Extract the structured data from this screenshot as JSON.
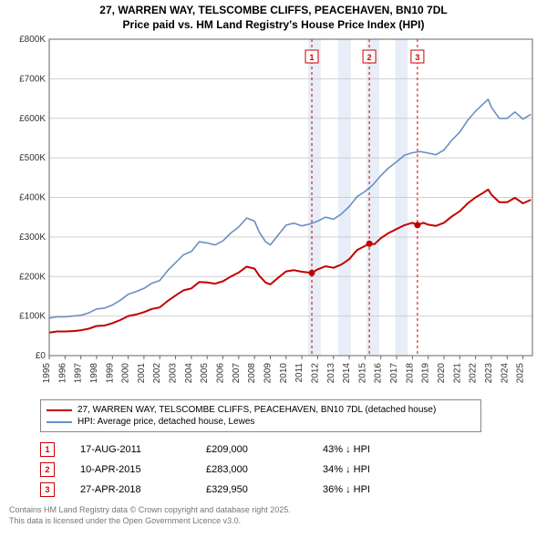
{
  "title_line1": "27, WARREN WAY, TELSCOMBE CLIFFS, PEACEHAVEN, BN10 7DL",
  "title_line2": "Price paid vs. HM Land Registry's House Price Index (HPI)",
  "chart": {
    "type": "line",
    "background_color": "#ffffff",
    "plot_border_color": "#666666",
    "grid_color": "#cfcfcf",
    "axis_label_color": "#333333",
    "axis_label_fontsize": 10,
    "y_axis": {
      "min": 0,
      "max": 800000,
      "tick_step": 100000,
      "tick_labels": [
        "£0",
        "£100K",
        "£200K",
        "£300K",
        "£400K",
        "£500K",
        "£600K",
        "£700K",
        "£800K"
      ]
    },
    "x_axis": {
      "years": [
        1995,
        1996,
        1997,
        1998,
        1999,
        2000,
        2001,
        2002,
        2003,
        2004,
        2005,
        2006,
        2007,
        2008,
        2009,
        2010,
        2011,
        2012,
        2013,
        2014,
        2015,
        2016,
        2017,
        2018,
        2019,
        2020,
        2021,
        2022,
        2023,
        2024,
        2025
      ]
    },
    "shaded_bands": [
      {
        "from": 2011.4,
        "to": 2012.2,
        "color": "#e7eef7"
      },
      {
        "from": 2013.3,
        "to": 2014.1,
        "color": "#e7eef7"
      },
      {
        "from": 2015.1,
        "to": 2015.9,
        "color": "#e7eef7"
      },
      {
        "from": 2016.9,
        "to": 2017.7,
        "color": "#e7eef7"
      }
    ],
    "sale_markers": [
      {
        "num": "1",
        "year": 2011.63,
        "dash_color": "#cc0000"
      },
      {
        "num": "2",
        "year": 2015.27,
        "dash_color": "#cc0000"
      },
      {
        "num": "3",
        "year": 2018.32,
        "dash_color": "#cc0000"
      }
    ],
    "series": [
      {
        "name": "hpi",
        "color": "#6a8fc5",
        "line_width": 1.6,
        "poly": true,
        "points": [
          [
            1995,
            95000
          ],
          [
            1995.5,
            98000
          ],
          [
            1996,
            98000
          ],
          [
            1996.5,
            100000
          ],
          [
            1997,
            102000
          ],
          [
            1997.5,
            108000
          ],
          [
            1998,
            118000
          ],
          [
            1998.5,
            120000
          ],
          [
            1999,
            128000
          ],
          [
            1999.5,
            140000
          ],
          [
            2000,
            155000
          ],
          [
            2000.5,
            162000
          ],
          [
            2001,
            170000
          ],
          [
            2001.5,
            183000
          ],
          [
            2002,
            190000
          ],
          [
            2002.5,
            215000
          ],
          [
            2003,
            235000
          ],
          [
            2003.5,
            255000
          ],
          [
            2004,
            263000
          ],
          [
            2004.5,
            288000
          ],
          [
            2005,
            285000
          ],
          [
            2005.5,
            280000
          ],
          [
            2006,
            290000
          ],
          [
            2006.5,
            310000
          ],
          [
            2007,
            325000
          ],
          [
            2007.5,
            348000
          ],
          [
            2008,
            340000
          ],
          [
            2008.3,
            312000
          ],
          [
            2008.7,
            288000
          ],
          [
            2009,
            280000
          ],
          [
            2009.5,
            305000
          ],
          [
            2010,
            330000
          ],
          [
            2010.5,
            335000
          ],
          [
            2011,
            328000
          ],
          [
            2011.5,
            333000
          ],
          [
            2012,
            340000
          ],
          [
            2012.5,
            350000
          ],
          [
            2013,
            345000
          ],
          [
            2013.5,
            358000
          ],
          [
            2014,
            377000
          ],
          [
            2014.5,
            402000
          ],
          [
            2015,
            415000
          ],
          [
            2015.5,
            432000
          ],
          [
            2016,
            455000
          ],
          [
            2016.5,
            475000
          ],
          [
            2017,
            490000
          ],
          [
            2017.5,
            507000
          ],
          [
            2018,
            513000
          ],
          [
            2018.5,
            516000
          ],
          [
            2019,
            512000
          ],
          [
            2019.5,
            508000
          ],
          [
            2020,
            520000
          ],
          [
            2020.5,
            545000
          ],
          [
            2021,
            565000
          ],
          [
            2021.5,
            595000
          ],
          [
            2022,
            618000
          ],
          [
            2022.5,
            637000
          ],
          [
            2022.8,
            648000
          ],
          [
            2023,
            628000
          ],
          [
            2023.5,
            600000
          ],
          [
            2024,
            600000
          ],
          [
            2024.5,
            616000
          ],
          [
            2025,
            598000
          ],
          [
            2025.5,
            610000
          ]
        ]
      },
      {
        "name": "property",
        "color": "#c20000",
        "line_width": 2,
        "poly": true,
        "points": [
          [
            1995,
            58000
          ],
          [
            1995.5,
            61000
          ],
          [
            1996,
            61000
          ],
          [
            1996.5,
            62000
          ],
          [
            1997,
            64000
          ],
          [
            1997.5,
            68000
          ],
          [
            1998,
            75000
          ],
          [
            1998.5,
            76000
          ],
          [
            1999,
            82000
          ],
          [
            1999.5,
            90000
          ],
          [
            2000,
            100000
          ],
          [
            2000.5,
            104000
          ],
          [
            2001,
            110000
          ],
          [
            2001.5,
            118000
          ],
          [
            2002,
            122000
          ],
          [
            2002.5,
            138000
          ],
          [
            2003,
            152000
          ],
          [
            2003.5,
            165000
          ],
          [
            2004,
            170000
          ],
          [
            2004.5,
            186000
          ],
          [
            2005,
            185000
          ],
          [
            2005.5,
            182000
          ],
          [
            2006,
            188000
          ],
          [
            2006.5,
            200000
          ],
          [
            2007,
            210000
          ],
          [
            2007.5,
            225000
          ],
          [
            2008,
            220000
          ],
          [
            2008.3,
            202000
          ],
          [
            2008.7,
            185000
          ],
          [
            2009,
            180000
          ],
          [
            2009.5,
            197000
          ],
          [
            2010,
            213000
          ],
          [
            2010.5,
            216000
          ],
          [
            2011,
            212000
          ],
          [
            2011.63,
            209000
          ],
          [
            2012,
            218000
          ],
          [
            2012.5,
            226000
          ],
          [
            2013,
            222000
          ],
          [
            2013.5,
            230000
          ],
          [
            2014,
            244000
          ],
          [
            2014.5,
            267000
          ],
          [
            2015.27,
            283000
          ],
          [
            2015.6,
            282000
          ],
          [
            2016,
            297000
          ],
          [
            2016.5,
            310000
          ],
          [
            2017,
            320000
          ],
          [
            2017.5,
            330000
          ],
          [
            2018,
            336000
          ],
          [
            2018.32,
            329950
          ],
          [
            2018.7,
            336000
          ],
          [
            2019,
            331000
          ],
          [
            2019.5,
            328000
          ],
          [
            2020,
            336000
          ],
          [
            2020.5,
            352000
          ],
          [
            2021,
            365000
          ],
          [
            2021.5,
            385000
          ],
          [
            2022,
            400000
          ],
          [
            2022.5,
            412000
          ],
          [
            2022.8,
            420000
          ],
          [
            2023,
            407000
          ],
          [
            2023.5,
            388000
          ],
          [
            2024,
            388000
          ],
          [
            2024.5,
            399000
          ],
          [
            2025,
            385000
          ],
          [
            2025.5,
            394000
          ]
        ]
      }
    ],
    "sale_dots": [
      {
        "year": 2011.63,
        "value": 209000,
        "color": "#c20000",
        "r": 3.5
      },
      {
        "year": 2015.27,
        "value": 283000,
        "color": "#c20000",
        "r": 3.5
      },
      {
        "year": 2018.32,
        "value": 329950,
        "color": "#c20000",
        "r": 3.5
      }
    ]
  },
  "legend": {
    "items": [
      {
        "color": "#c20000",
        "label": "27, WARREN WAY, TELSCOMBE CLIFFS, PEACEHAVEN, BN10 7DL (detached house)"
      },
      {
        "color": "#6a8fc5",
        "label": "HPI: Average price, detached house, Lewes"
      }
    ]
  },
  "sales": [
    {
      "num": "1",
      "date": "17-AUG-2011",
      "price": "£209,000",
      "diff": "43% ↓ HPI"
    },
    {
      "num": "2",
      "date": "10-APR-2015",
      "price": "£283,000",
      "diff": "34% ↓ HPI"
    },
    {
      "num": "3",
      "date": "27-APR-2018",
      "price": "£329,950",
      "diff": "36% ↓ HPI"
    }
  ],
  "attribution_line1": "Contains HM Land Registry data © Crown copyright and database right 2025.",
  "attribution_line2": "This data is licensed under the Open Government Licence v3.0."
}
